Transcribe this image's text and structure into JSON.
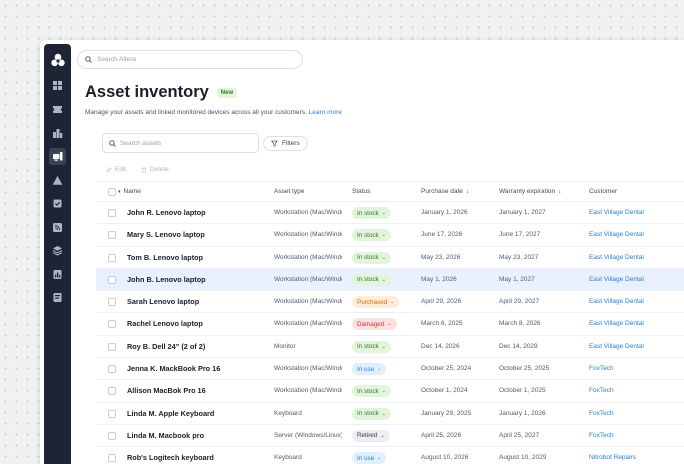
{
  "search": {
    "placeholder": "Search Altera"
  },
  "page": {
    "title": "Asset inventory",
    "new_badge": "New",
    "subtitle": "Manage your assets and linked monitored devices across all your customers.",
    "learn_more": "Learn more"
  },
  "toolbar": {
    "search_placeholder": "Search assets",
    "filters_label": "Filters",
    "edit_label": "Edit",
    "delete_label": "Delete"
  },
  "columns": {
    "name": "Name",
    "asset_type": "Asset type",
    "status": "Status",
    "purchase_date": "Purchase date",
    "warranty": "Warranty expiration",
    "customer": "Customer"
  },
  "status_colors": {
    "In stock": {
      "bg": "#e3f4dc",
      "fg": "#2f7a2a"
    },
    "Purchased": {
      "bg": "#fdecd6",
      "fg": "#c86f10"
    },
    "Damaged": {
      "bg": "#fbe1e1",
      "fg": "#c8393a"
    },
    "In use": {
      "bg": "#dff0fc",
      "fg": "#2a7fd1"
    },
    "Retired": {
      "bg": "#eceef1",
      "fg": "#3a404a"
    }
  },
  "rows": [
    {
      "name": "John R. Lenovo laptop",
      "type": "Workstation (Mac/Windows)",
      "status": "In stock",
      "purchase": "January 1, 2026",
      "warranty": "January 1, 2027",
      "customer": "East Village Dental",
      "selected": false
    },
    {
      "name": "Mary S. Lenovo laptop",
      "type": "Workstation (Mac/Windows)",
      "status": "In stock",
      "purchase": "June 17, 2026",
      "warranty": "June 17, 2027",
      "customer": "East Village Dental",
      "selected": false
    },
    {
      "name": "Tom B. Lenovo laptop",
      "type": "Workstation (Mac/Windows)",
      "status": "In stock",
      "purchase": "May 23, 2026",
      "warranty": "May 23, 2027",
      "customer": "East Village Dental",
      "selected": false
    },
    {
      "name": "John B. Lenovo laptop",
      "type": "Workstation (Mac/Windows)",
      "status": "In stock",
      "purchase": "May 1, 2026",
      "warranty": "May 1, 2027",
      "customer": "East Village Dental",
      "selected": true
    },
    {
      "name": "Sarah Lenovo laptop",
      "type": "Workstation (Mac/Windows)",
      "status": "Purchased",
      "purchase": "April 29, 2026",
      "warranty": "April 29, 2027",
      "customer": "East Village Dental",
      "selected": false
    },
    {
      "name": "Rachel  Lenovo laptop",
      "type": "Workstation (Mac/Windows)",
      "status": "Damaged",
      "purchase": "March 8, 2025",
      "warranty": "March 8, 2026",
      "customer": "East Village Dental",
      "selected": false
    },
    {
      "name": "Roy B. Dell 24” (2 of 2)",
      "type": "Monitor",
      "status": "In stock",
      "purchase": "Dec 14, 2026",
      "warranty": "Dec 14, 2029",
      "customer": "East Village Dental",
      "selected": false
    },
    {
      "name": "Jenna K. MackBook Pro 16",
      "type": "Workstation (Mac/Windows)",
      "status": "In use",
      "purchase": "October 25, 2024",
      "warranty": "October 25, 2025",
      "customer": "FoxTech",
      "selected": false
    },
    {
      "name": "Allison MacBok Pro 16",
      "type": "Workstation (Mac/Windows)",
      "status": "In stock",
      "purchase": "October 1, 2024",
      "warranty": "October 1, 2025",
      "customer": "FoxTech",
      "selected": false
    },
    {
      "name": "Linda M. Apple Keyboard",
      "type": "Keyboard",
      "status": "In stock",
      "purchase": "January 29, 2025",
      "warranty": "January 1, 2026",
      "customer": "FoxTech",
      "selected": false
    },
    {
      "name": "Linda M. Macbook pro",
      "type": "Server (Windows/Linux)",
      "status": "Retired",
      "purchase": "April 25, 2026",
      "warranty": "April 25, 2027",
      "customer": "FoxTech",
      "selected": false
    },
    {
      "name": "Rob's Logitech keyboard",
      "type": "Keyboard",
      "status": "In use",
      "purchase": "August 10, 2026",
      "warranty": "August 10, 2029",
      "customer": "Nitrobot Repairs",
      "selected": false
    }
  ]
}
